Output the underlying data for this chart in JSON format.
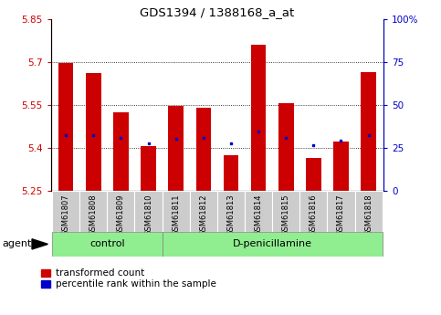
{
  "title": "GDS1394 / 1388168_a_at",
  "samples": [
    "GSM61807",
    "GSM61808",
    "GSM61809",
    "GSM61810",
    "GSM61811",
    "GSM61812",
    "GSM61813",
    "GSM61814",
    "GSM61815",
    "GSM61816",
    "GSM61817",
    "GSM61818"
  ],
  "red_values": [
    5.695,
    5.66,
    5.525,
    5.405,
    5.545,
    5.54,
    5.375,
    5.76,
    5.555,
    5.365,
    5.42,
    5.665
  ],
  "blue_values": [
    5.445,
    5.445,
    5.435,
    5.415,
    5.43,
    5.435,
    5.415,
    5.455,
    5.435,
    5.41,
    5.425,
    5.445
  ],
  "ymin": 5.25,
  "ymax": 5.85,
  "yticks": [
    5.25,
    5.4,
    5.55,
    5.7,
    5.85
  ],
  "ytick_labels": [
    "5.25",
    "5.4",
    "5.55",
    "5.7",
    "5.85"
  ],
  "right_yticks": [
    0,
    25,
    50,
    75,
    100
  ],
  "right_ytick_labels": [
    "0",
    "25",
    "50",
    "75",
    "100%"
  ],
  "control_n": 4,
  "bar_width": 0.55,
  "red_color": "#cc0000",
  "blue_color": "#0000cc",
  "green_bg": "#90ee90",
  "label_bg": "#cccccc",
  "agent_label": "agent",
  "control_label": "control",
  "treatment_label": "D-penicillamine",
  "legend_red": "transformed count",
  "legend_blue": "percentile rank within the sample",
  "blue_dot_size": 18
}
